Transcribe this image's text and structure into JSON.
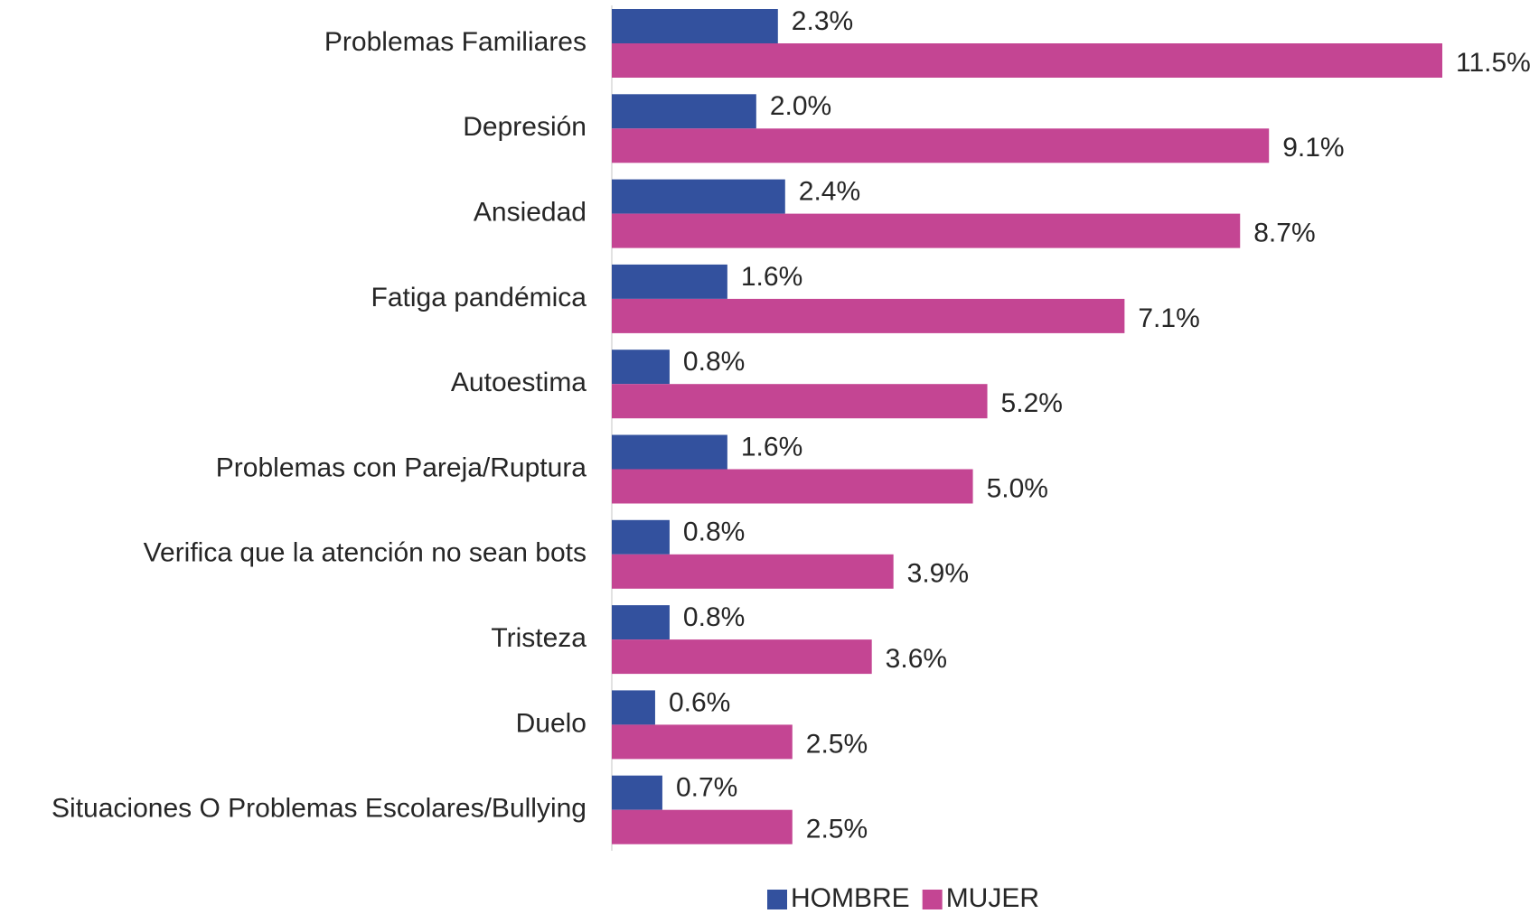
{
  "chart_data": {
    "type": "bar",
    "orientation": "horizontal",
    "categories": [
      "Problemas Familiares",
      "Depresión",
      "Ansiedad",
      "Fatiga pandémica",
      "Autoestima",
      "Problemas con Pareja/Ruptura",
      "Verifica que la atención no sean bots",
      "Tristeza",
      "Duelo",
      "Situaciones O Problemas Escolares/Bullying"
    ],
    "series": [
      {
        "name": "HOMBRE",
        "color": "#33519e",
        "values": [
          2.3,
          2.0,
          2.4,
          1.6,
          0.8,
          1.6,
          0.8,
          0.8,
          0.6,
          0.7
        ],
        "value_labels": [
          "2.3%",
          "2.0%",
          "2.4%",
          "1.6%",
          "0.8%",
          "1.6%",
          "0.8%",
          "0.8%",
          "0.6%",
          "0.7%"
        ]
      },
      {
        "name": "MUJER",
        "color": "#c44593",
        "values": [
          11.5,
          9.1,
          8.7,
          7.1,
          5.2,
          5.0,
          3.9,
          3.6,
          2.5,
          2.5
        ],
        "value_labels": [
          "11.5%",
          "9.1%",
          "8.7%",
          "7.1%",
          "5.2%",
          "5.0%",
          "3.9%",
          "3.6%",
          "2.5%",
          "2.5%"
        ]
      }
    ],
    "xlim": [
      0,
      11.5
    ],
    "legend": "bottom"
  }
}
